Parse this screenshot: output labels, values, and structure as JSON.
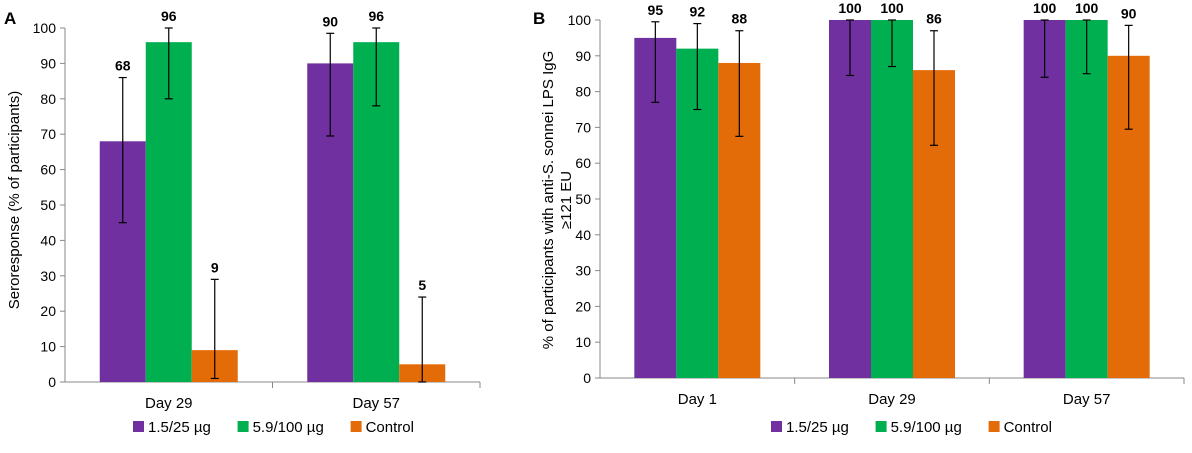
{
  "chart_data": [
    {
      "panel": "A",
      "type": "bar",
      "title": "",
      "xlabel": "",
      "ylabel": "Seroresponse (% of participants)",
      "ylim": [
        0,
        100
      ],
      "yticks": [
        0,
        10,
        20,
        30,
        40,
        50,
        60,
        70,
        80,
        90,
        100
      ],
      "categories": [
        "Day 29",
        "Day 57"
      ],
      "series": [
        {
          "name": "1.5/25 µg",
          "color": "#7030a0",
          "values": [
            68,
            90
          ],
          "err_low": [
            45,
            69.5
          ],
          "err_high": [
            86,
            98.5
          ],
          "labels": [
            "68",
            "90"
          ]
        },
        {
          "name": "5.9/100 µg",
          "color": "#00b050",
          "values": [
            96,
            96
          ],
          "err_low": [
            80,
            78
          ],
          "err_high": [
            100,
            100
          ],
          "labels": [
            "96",
            "96"
          ]
        },
        {
          "name": "Control",
          "color": "#e36c09",
          "values": [
            9,
            5
          ],
          "err_low": [
            1,
            0
          ],
          "err_high": [
            29,
            24
          ],
          "labels": [
            "9",
            "5"
          ]
        }
      ],
      "legend_position": "bottom"
    },
    {
      "panel": "B",
      "type": "bar",
      "title": "",
      "xlabel": "",
      "ylabel_line1": "% of participants with anti-S. sonnei LPS IgG",
      "ylabel_line2": "≥121 EU",
      "ylim": [
        0,
        100
      ],
      "yticks": [
        0,
        10,
        20,
        30,
        40,
        50,
        60,
        70,
        80,
        90,
        100
      ],
      "categories": [
        "Day 1",
        "Day 29",
        "Day 57"
      ],
      "series": [
        {
          "name": "1.5/25 µg",
          "color": "#7030a0",
          "values": [
            95,
            100,
            100
          ],
          "err_low": [
            77,
            84.5,
            84
          ],
          "err_high": [
            99.5,
            100,
            100
          ],
          "labels": [
            "95",
            "100",
            "100"
          ]
        },
        {
          "name": "5.9/100 µg",
          "color": "#00b050",
          "values": [
            92,
            100,
            100
          ],
          "err_low": [
            75,
            87,
            85
          ],
          "err_high": [
            99,
            100,
            100
          ],
          "labels": [
            "92",
            "100",
            "100"
          ]
        },
        {
          "name": "Control",
          "color": "#e36c09",
          "values": [
            88,
            86,
            90
          ],
          "err_low": [
            67.5,
            65,
            69.5
          ],
          "err_high": [
            97,
            97,
            98.5
          ],
          "labels": [
            "88",
            "86",
            "90"
          ]
        }
      ],
      "legend_position": "bottom"
    }
  ]
}
